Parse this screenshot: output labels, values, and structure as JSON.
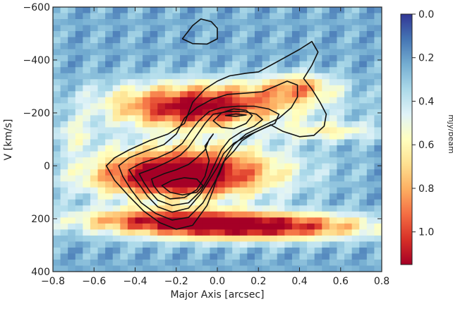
{
  "chart_data": {
    "type": "heatmap",
    "title": "",
    "xlabel": "Major Axis [arcsec]",
    "ylabel": "V [km/s]",
    "xlim": [
      -0.8,
      0.8
    ],
    "ylim": [
      400,
      -600
    ],
    "x_ticks": [
      "−0.8",
      "−0.6",
      "−0.4",
      "−0.2",
      "0.0",
      "0.2",
      "0.4",
      "0.6",
      "0.8"
    ],
    "y_ticks": [
      "−600",
      "−400",
      "−200",
      "0",
      "200",
      "400"
    ],
    "x_tick_values": [
      -0.8,
      -0.6,
      -0.4,
      -0.2,
      0.0,
      0.2,
      0.4,
      0.6,
      0.8
    ],
    "y_tick_values": [
      -600,
      -400,
      -200,
      0,
      200,
      400
    ],
    "colorbar": {
      "label": "mJy/beam",
      "range": [
        0.0,
        1.15
      ],
      "ticks": [
        "0.0",
        "0.2",
        "0.4",
        "0.6",
        "0.8",
        "1.0"
      ],
      "tick_values": [
        0.0,
        0.2,
        0.4,
        0.6,
        0.8,
        1.0
      ],
      "colormap": "RdYlBu_r",
      "inverted": true
    },
    "emission_components": [
      {
        "x": -0.05,
        "v": -240,
        "sx": 0.35,
        "sv": 55,
        "peak": 0.75
      },
      {
        "x": -0.15,
        "v": -190,
        "sx": 0.22,
        "sv": 45,
        "peak": 0.35
      },
      {
        "x": -0.15,
        "v": 20,
        "sx": 0.32,
        "sv": 70,
        "peak": 0.95
      },
      {
        "x": -0.25,
        "v": 60,
        "sx": 0.25,
        "sv": 40,
        "peak": 0.3
      },
      {
        "x": 0.15,
        "v": 230,
        "sx": 0.4,
        "sv": 35,
        "peak": 1.0
      },
      {
        "x": -0.3,
        "v": 200,
        "sx": 0.3,
        "sv": 30,
        "peak": 0.5
      },
      {
        "x": 0.4,
        "v": -300,
        "sx": 0.12,
        "sv": 35,
        "peak": 0.45
      },
      {
        "x": 0.55,
        "v": -130,
        "sx": 0.18,
        "sv": 25,
        "peak": 0.35
      },
      {
        "x": -0.7,
        "v": -120,
        "sx": 0.08,
        "sv": 40,
        "peak": 0.25
      }
    ],
    "background_level": 0.3,
    "contours": [
      {
        "name": "contour-outer",
        "points": [
          [
            -0.54,
            0
          ],
          [
            -0.5,
            -30
          ],
          [
            -0.43,
            -60
          ],
          [
            -0.33,
            -95
          ],
          [
            -0.24,
            -120
          ],
          [
            -0.16,
            -160
          ],
          [
            -0.12,
            -240
          ],
          [
            -0.06,
            -290
          ],
          [
            0.0,
            -320
          ],
          [
            0.06,
            -340
          ],
          [
            0.14,
            -350
          ],
          [
            0.2,
            -355
          ],
          [
            0.26,
            -380
          ],
          [
            0.33,
            -410
          ],
          [
            0.4,
            -440
          ],
          [
            0.46,
            -470
          ],
          [
            0.49,
            -430
          ],
          [
            0.46,
            -380
          ],
          [
            0.42,
            -330
          ],
          [
            0.46,
            -290
          ],
          [
            0.5,
            -240
          ],
          [
            0.53,
            -195
          ],
          [
            0.52,
            -150
          ],
          [
            0.47,
            -115
          ],
          [
            0.4,
            -110
          ],
          [
            0.32,
            -130
          ],
          [
            0.26,
            -155
          ],
          [
            0.18,
            -125
          ],
          [
            0.12,
            -95
          ],
          [
            0.08,
            -55
          ],
          [
            0.03,
            -15
          ],
          [
            0.0,
            40
          ],
          [
            -0.02,
            90
          ],
          [
            -0.05,
            150
          ],
          [
            -0.12,
            225
          ],
          [
            -0.2,
            240
          ],
          [
            -0.28,
            215
          ],
          [
            -0.36,
            170
          ],
          [
            -0.43,
            115
          ],
          [
            -0.5,
            55
          ]
        ]
      },
      {
        "name": "contour-2",
        "points": [
          [
            -0.48,
            0
          ],
          [
            -0.43,
            -30
          ],
          [
            -0.35,
            -55
          ],
          [
            -0.26,
            -80
          ],
          [
            -0.2,
            -120
          ],
          [
            -0.16,
            -180
          ],
          [
            -0.1,
            -220
          ],
          [
            -0.03,
            -250
          ],
          [
            0.05,
            -270
          ],
          [
            0.14,
            -275
          ],
          [
            0.22,
            -280
          ],
          [
            0.28,
            -300
          ],
          [
            0.34,
            -320
          ],
          [
            0.39,
            -305
          ],
          [
            0.39,
            -260
          ],
          [
            0.36,
            -220
          ],
          [
            0.3,
            -180
          ],
          [
            0.22,
            -150
          ],
          [
            0.14,
            -120
          ],
          [
            0.08,
            -80
          ],
          [
            0.04,
            -30
          ],
          [
            0.01,
            30
          ],
          [
            -0.03,
            85
          ],
          [
            -0.07,
            140
          ],
          [
            -0.14,
            195
          ],
          [
            -0.22,
            205
          ],
          [
            -0.3,
            180
          ],
          [
            -0.37,
            140
          ],
          [
            -0.42,
            90
          ],
          [
            -0.46,
            40
          ]
        ]
      },
      {
        "name": "contour-3",
        "points": [
          [
            -0.43,
            15
          ],
          [
            -0.37,
            -10
          ],
          [
            -0.29,
            -30
          ],
          [
            -0.22,
            -55
          ],
          [
            -0.17,
            -85
          ],
          [
            -0.13,
            -130
          ],
          [
            -0.09,
            -170
          ],
          [
            -0.04,
            -205
          ],
          [
            0.02,
            -220
          ],
          [
            0.1,
            -225
          ],
          [
            0.18,
            -225
          ],
          [
            0.25,
            -215
          ],
          [
            0.3,
            -195
          ],
          [
            0.28,
            -160
          ],
          [
            0.22,
            -140
          ],
          [
            0.15,
            -115
          ],
          [
            0.08,
            -85
          ],
          [
            0.03,
            -45
          ],
          [
            0.0,
            5
          ],
          [
            -0.04,
            55
          ],
          [
            -0.08,
            105
          ],
          [
            -0.14,
            160
          ],
          [
            -0.22,
            175
          ],
          [
            -0.29,
            155
          ],
          [
            -0.34,
            115
          ],
          [
            -0.38,
            70
          ],
          [
            -0.41,
            40
          ]
        ]
      },
      {
        "name": "contour-4",
        "points": [
          [
            -0.38,
            30
          ],
          [
            -0.31,
            10
          ],
          [
            -0.24,
            -15
          ],
          [
            -0.18,
            -40
          ],
          [
            -0.14,
            -70
          ],
          [
            -0.1,
            -115
          ],
          [
            -0.06,
            -160
          ],
          [
            -0.02,
            -195
          ],
          [
            0.05,
            -205
          ],
          [
            0.13,
            -205
          ],
          [
            0.19,
            -195
          ],
          [
            0.22,
            -175
          ],
          [
            0.18,
            -150
          ],
          [
            0.12,
            -130
          ],
          [
            0.06,
            -100
          ],
          [
            0.02,
            -60
          ],
          [
            -0.01,
            -10
          ],
          [
            -0.04,
            40
          ],
          [
            -0.08,
            95
          ],
          [
            -0.14,
            140
          ],
          [
            -0.22,
            150
          ],
          [
            -0.29,
            130
          ],
          [
            -0.33,
            95
          ],
          [
            -0.36,
            60
          ]
        ]
      },
      {
        "name": "contour-5",
        "points": [
          [
            -0.32,
            50
          ],
          [
            -0.26,
            30
          ],
          [
            -0.2,
            15
          ],
          [
            -0.14,
            -5
          ],
          [
            -0.1,
            -30
          ],
          [
            -0.06,
            -60
          ],
          [
            -0.04,
            -100
          ],
          [
            -0.02,
            -120
          ],
          [
            -0.06,
            -75
          ],
          [
            -0.04,
            -20
          ],
          [
            -0.06,
            40
          ],
          [
            -0.1,
            90
          ],
          [
            -0.16,
            120
          ],
          [
            -0.23,
            125
          ],
          [
            -0.28,
            105
          ],
          [
            -0.31,
            75
          ]
        ]
      },
      {
        "name": "contour-6",
        "points": [
          [
            -0.27,
            75
          ],
          [
            -0.22,
            55
          ],
          [
            -0.16,
            45
          ],
          [
            -0.1,
            50
          ],
          [
            -0.07,
            75
          ],
          [
            -0.1,
            100
          ],
          [
            -0.17,
            110
          ],
          [
            -0.23,
            100
          ]
        ]
      },
      {
        "name": "contour-7",
        "points": [
          [
            -0.02,
            -170
          ],
          [
            0.02,
            -200
          ],
          [
            0.08,
            -215
          ],
          [
            0.14,
            -210
          ],
          [
            0.17,
            -190
          ],
          [
            0.14,
            -160
          ],
          [
            0.08,
            -140
          ],
          [
            0.02,
            -145
          ]
        ]
      },
      {
        "name": "contour-8",
        "points": [
          [
            0.04,
            -190
          ],
          [
            0.09,
            -196
          ],
          [
            0.14,
            -192
          ],
          [
            0.09,
            -187
          ]
        ]
      },
      {
        "name": "contour-top",
        "points": [
          [
            -0.17,
            -480
          ],
          [
            -0.12,
            -530
          ],
          [
            -0.08,
            -555
          ],
          [
            -0.03,
            -545
          ],
          [
            0.0,
            -520
          ],
          [
            0.0,
            -480
          ],
          [
            -0.05,
            -460
          ],
          [
            -0.12,
            -462
          ]
        ]
      }
    ]
  }
}
